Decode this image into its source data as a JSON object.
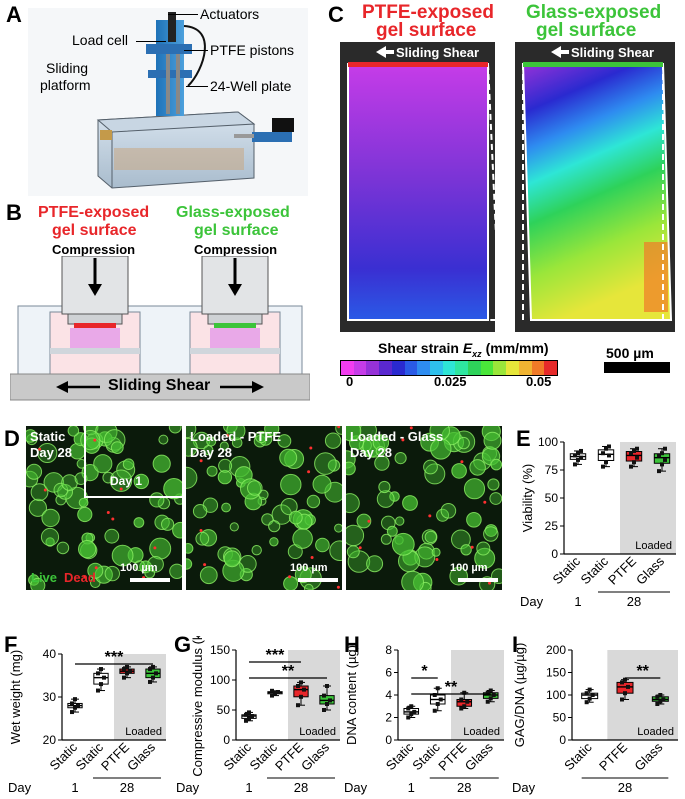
{
  "panels": {
    "A": {
      "letter": "A",
      "labels": {
        "actuators": "Actuators",
        "load_cell": "Load cell",
        "ptfe_pistons": "PTFE pistons",
        "sliding_platform_1": "Sliding",
        "sliding_platform_2": "platform",
        "well_plate": "24-Well plate"
      }
    },
    "B": {
      "letter": "B",
      "left_title_1": "PTFE-exposed",
      "left_title_2": "gel surface",
      "right_title_1": "Glass-exposed",
      "right_title_2": "gel surface",
      "compression": "Compression",
      "sliding": "Sliding Shear"
    },
    "C": {
      "letter": "C",
      "left_title_1": "PTFE-exposed",
      "left_title_2": "gel surface",
      "right_title_1": "Glass-exposed",
      "right_title_2": "gel surface",
      "sliding": "Sliding Shear",
      "colorbar_label": "Shear strain",
      "colorbar_symbol": "E",
      "colorbar_sub": "xz",
      "colorbar_units": "(mm/mm)",
      "ticks": [
        "0",
        "0.025",
        "0.05"
      ],
      "scale_bar": "500 µm",
      "colors": [
        "#f23df0",
        "#c63ce8",
        "#9632d8",
        "#5a28d0",
        "#2a2ad0",
        "#2a5ae6",
        "#2e8cf0",
        "#2ec0ec",
        "#2ee6d6",
        "#2ee6a0",
        "#2ed25a",
        "#4ae63a",
        "#9ae63a",
        "#e6e63a",
        "#f0b432",
        "#f07a28",
        "#e62a2a"
      ]
    },
    "D": {
      "letter": "D",
      "images": [
        {
          "title_1": "Static",
          "title_2": "Day 28",
          "inset": "Day 1",
          "scale": "100 µm"
        },
        {
          "title_1": "Loaded - PTFE",
          "title_2": "Day 28",
          "scale": "100 µm"
        },
        {
          "title_1": "Loaded - Glass",
          "title_2": "Day 28",
          "scale": "100 µm"
        }
      ],
      "live": "Live",
      "dead": "Dead"
    },
    "E": {
      "letter": "E"
    },
    "F": {
      "letter": "F"
    },
    "G": {
      "letter": "G"
    },
    "H": {
      "letter": "H"
    },
    "I": {
      "letter": "I"
    }
  },
  "chart_data": [
    {
      "id": "E",
      "type": "box",
      "ylabel": "Viability (%)",
      "ylim": [
        0,
        100
      ],
      "yticks": [
        "0",
        "25",
        "50",
        "75",
        "100"
      ],
      "categories": [
        "Static",
        "Static",
        "PTFE",
        "Glass"
      ],
      "day_label": "Day",
      "day_groups": [
        "1",
        "28"
      ],
      "loaded_label": "Loaded",
      "fills": [
        "#ffffff",
        "#ffffff",
        "#e8262a",
        "#3cc43a"
      ],
      "points": [
        [
          80,
          84,
          86,
          88,
          90,
          92
        ],
        [
          78,
          82,
          88,
          90,
          94,
          96
        ],
        [
          78,
          82,
          86,
          90,
          92,
          94
        ],
        [
          74,
          80,
          84,
          88,
          90,
          94
        ]
      ],
      "sig": []
    },
    {
      "id": "F",
      "type": "box",
      "ylabel": "Wet weight (mg)",
      "ylim": [
        20,
        40
      ],
      "yticks": [
        "20",
        "30",
        "40"
      ],
      "categories": [
        "Static",
        "Static",
        "PTFE",
        "Glass"
      ],
      "day_label": "Day",
      "day_groups": [
        "1",
        "28"
      ],
      "loaded_label": "Loaded",
      "fills": [
        "#ffffff",
        "#ffffff",
        "#e8262a",
        "#3cc43a"
      ],
      "points": [
        [
          26.5,
          27.5,
          28,
          28.5,
          29.5
        ],
        [
          31.5,
          33,
          34.5,
          35.5,
          36.5
        ],
        [
          34.5,
          35.5,
          36,
          36.5,
          37
        ],
        [
          33.5,
          34.5,
          35.5,
          36.5,
          37
        ]
      ],
      "sig": [
        {
          "label": "***",
          "from": 0,
          "to": [
            1,
            2,
            3
          ]
        }
      ]
    },
    {
      "id": "G",
      "type": "box",
      "ylabel": "Compressive modulus (kPa)",
      "ylim": [
        0,
        150
      ],
      "yticks": [
        "0",
        "50",
        "100",
        "150"
      ],
      "categories": [
        "Static",
        "Static",
        "PTFE",
        "Glass"
      ],
      "day_label": "Day",
      "day_groups": [
        "1",
        "28"
      ],
      "loaded_label": "Loaded",
      "fills": [
        "#ffffff",
        "#ffffff",
        "#e8262a",
        "#3cc43a"
      ],
      "points": [
        [
          32,
          36,
          40,
          42,
          46
        ],
        [
          74,
          78,
          80,
          82
        ],
        [
          58,
          72,
          84,
          90,
          96
        ],
        [
          50,
          60,
          66,
          74,
          90
        ]
      ],
      "sig": [
        {
          "label": "***",
          "from": 0,
          "to": [
            1,
            2
          ]
        },
        {
          "label": "**",
          "from": 0,
          "to": [
            3
          ]
        }
      ]
    },
    {
      "id": "H",
      "type": "box",
      "ylabel": "DNA content (µg)",
      "ylim": [
        0,
        8
      ],
      "yticks": [
        "0",
        "2",
        "4",
        "6",
        "8"
      ],
      "categories": [
        "Static",
        "Static",
        "PTFE",
        "Glass"
      ],
      "day_label": "Day",
      "day_groups": [
        "1",
        "28"
      ],
      "loaded_label": "Loaded",
      "fills": [
        "#ffffff",
        "#ffffff",
        "#e8262a",
        "#3cc43a"
      ],
      "points": [
        [
          2.0,
          2.3,
          2.5,
          2.8,
          3.0
        ],
        [
          2.6,
          3.2,
          3.6,
          4.0,
          4.6
        ],
        [
          2.8,
          3.0,
          3.4,
          3.6,
          4.2
        ],
        [
          3.4,
          3.7,
          4.0,
          4.2,
          4.4
        ]
      ],
      "sig": [
        {
          "label": "*",
          "from": 0,
          "to": [
            1
          ]
        },
        {
          "label": "**",
          "from": 0,
          "to": [
            3
          ]
        }
      ]
    },
    {
      "id": "I",
      "type": "box",
      "ylabel": "GAG/DNA (µg/µg)",
      "ylim": [
        0,
        200
      ],
      "yticks": [
        "0",
        "50",
        "100",
        "150",
        "200"
      ],
      "categories": [
        "Static",
        "PTFE",
        "Glass"
      ],
      "day_label": "Day",
      "day_groups": [
        "28"
      ],
      "loaded_label": "Loaded",
      "fills": [
        "#ffffff",
        "#e8262a",
        "#3cc43a"
      ],
      "points": [
        [
          84,
          92,
          100,
          104,
          112
        ],
        [
          90,
          104,
          118,
          128,
          134
        ],
        [
          80,
          86,
          90,
          96,
          100
        ]
      ],
      "sig": [
        {
          "label": "**",
          "from": 1,
          "to": [
            2
          ]
        }
      ]
    }
  ]
}
